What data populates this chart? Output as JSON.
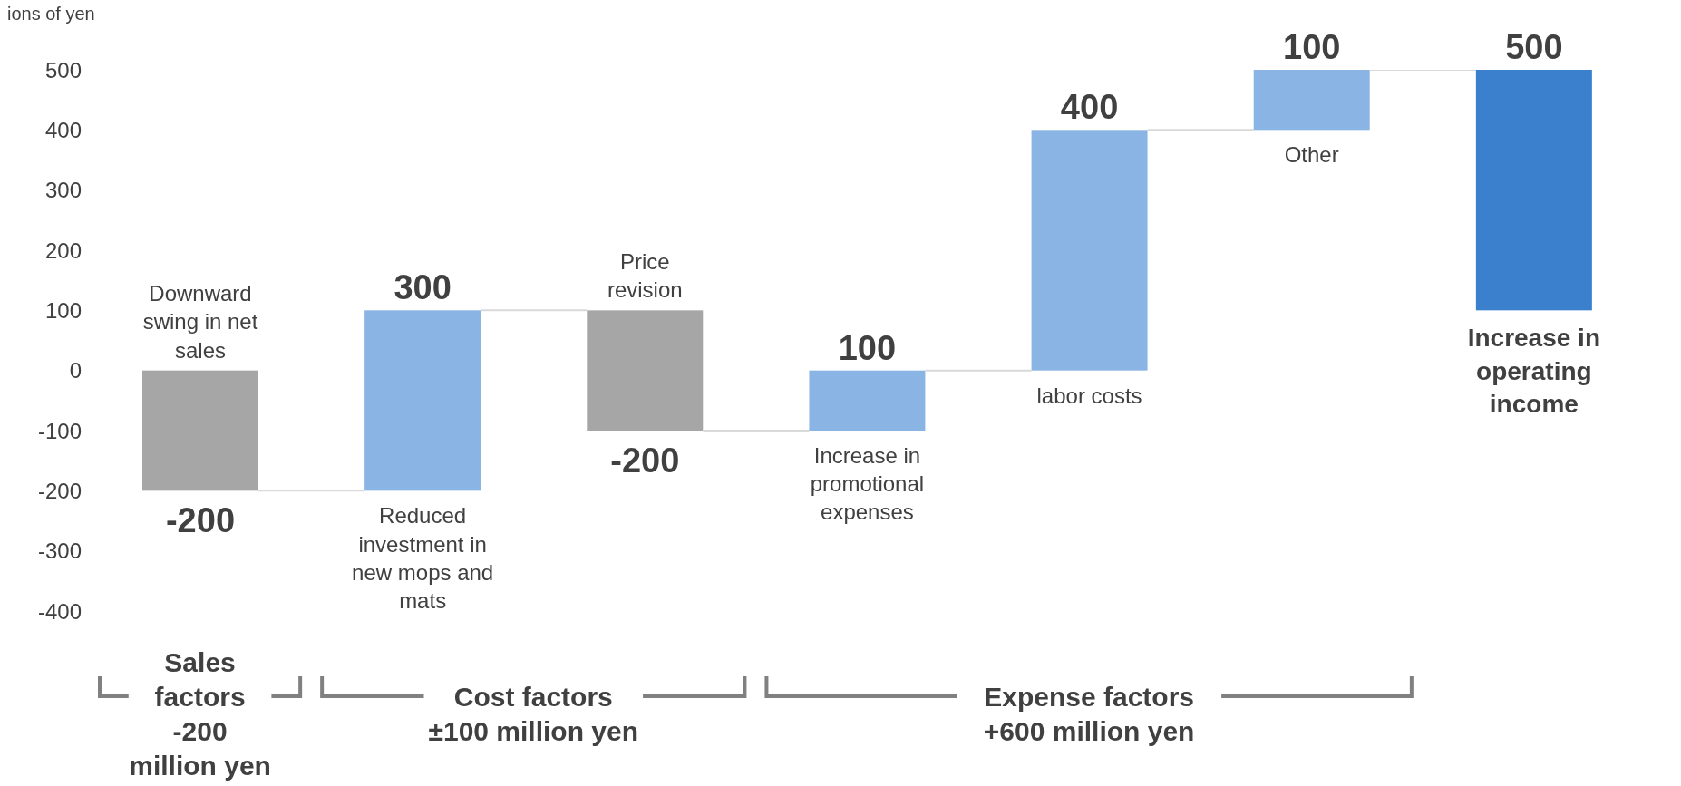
{
  "chart_data": {
    "type": "bar",
    "ylabel": "ions of yen",
    "categories": [
      "Downward swing in net sales",
      "Reduced investment in new mops and mats",
      "Price revision",
      "Increase in promotional expenses",
      "labor costs",
      "Other",
      "Increase in operating income"
    ],
    "base": [
      0,
      -200,
      100,
      -100,
      0,
      400,
      100
    ],
    "values": [
      -200,
      300,
      -200,
      100,
      400,
      100,
      400
    ],
    "value_labels": [
      "-200",
      "300",
      "-200",
      "100",
      "400",
      "100",
      "500"
    ],
    "colors": [
      "#a6a6a6",
      "#8ab4e3",
      "#a6a6a6",
      "#8ab4e3",
      "#8ab4e3",
      "#8ab4e3",
      "#3a80cc"
    ],
    "ylim": [
      -400,
      500
    ],
    "yticks": [
      -400,
      -300,
      -200,
      -100,
      0,
      100,
      200,
      300,
      400,
      500
    ],
    "grid": false,
    "legend": false,
    "annotations": [
      "Sales factors\n-200 million yen",
      "Cost factors\n±100 million yen",
      "Expense factors\n+600 million yen"
    ]
  }
}
